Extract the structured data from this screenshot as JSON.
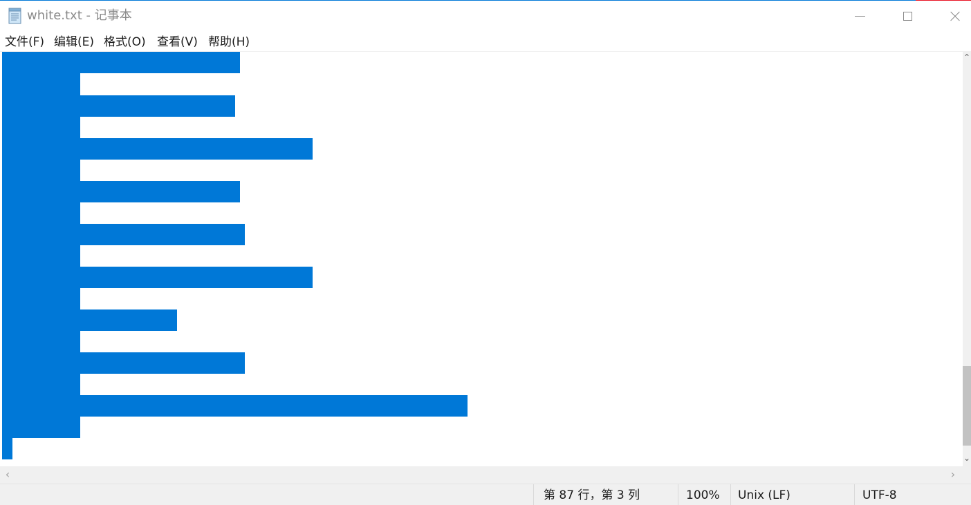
{
  "window": {
    "title": "white.txt - 记事本",
    "accent_color": "#0078d7",
    "controls": {
      "minimize_icon": "minimize-icon",
      "maximize_icon": "maximize-icon",
      "close_icon": "close-icon"
    }
  },
  "menu": {
    "items": [
      {
        "label": "文件(F)"
      },
      {
        "label": "编辑(E)"
      },
      {
        "label": "格式(O)"
      },
      {
        "label": "查看(V)"
      },
      {
        "label": "帮助(H)"
      }
    ]
  },
  "editor": {
    "content_state": "selected whitespace text (highlighted in blue)",
    "selection_color": "#0078d7"
  },
  "statusbar": {
    "position": "第 87 行，第 3 列",
    "zoom": "100%",
    "line_ending": "Unix (LF)",
    "encoding": "UTF-8"
  }
}
